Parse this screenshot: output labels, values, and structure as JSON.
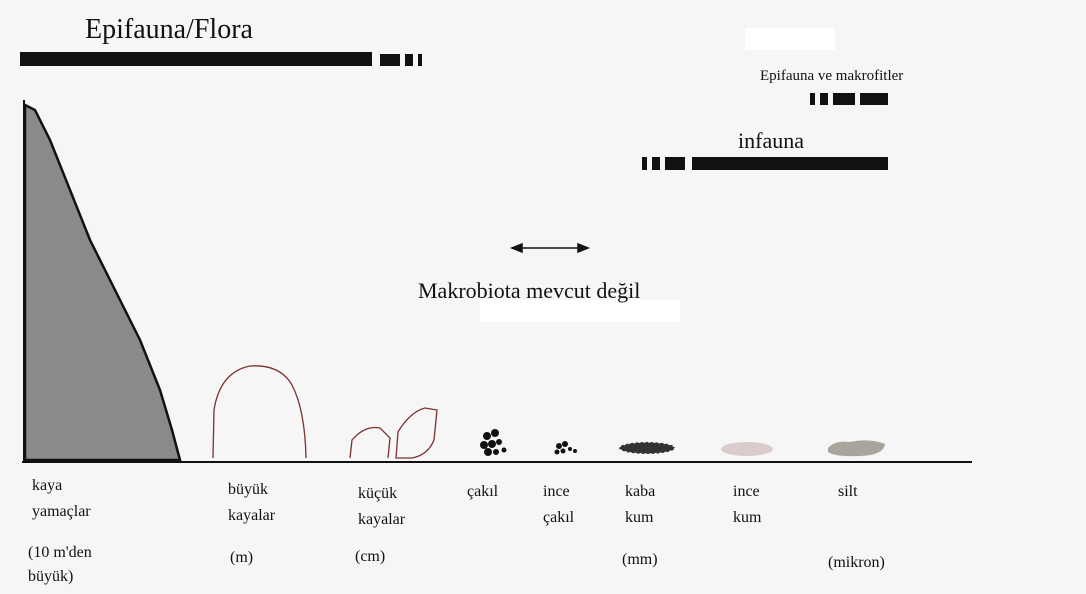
{
  "title": "Epifauna/Flora",
  "epifauna_label": "Epifauna ve makrofitler",
  "infauna_label": "infauna",
  "no_macrobiota_label": "Makrobiota mevcut değil",
  "substrates": [
    {
      "lines": [
        "kaya",
        "yamaçlar"
      ]
    },
    {
      "lines": [
        "büyük",
        "kayalar"
      ]
    },
    {
      "lines": [
        "küçük",
        "kayalar"
      ]
    },
    {
      "lines": [
        "çakıl"
      ]
    },
    {
      "lines": [
        "ince",
        "çakıl"
      ]
    },
    {
      "lines": [
        "kaba",
        "kum"
      ]
    },
    {
      "lines": [
        "ince",
        "kum"
      ]
    },
    {
      "lines": [
        "silt"
      ]
    }
  ],
  "units": [
    {
      "lines": [
        "(10 m'den",
        "büyük)"
      ]
    },
    {
      "lines": [
        "(m)"
      ]
    },
    {
      "lines": [
        "(cm)"
      ]
    },
    {
      "lines": [
        "(mm)"
      ]
    },
    {
      "lines": [
        "(mikron)"
      ]
    }
  ]
}
